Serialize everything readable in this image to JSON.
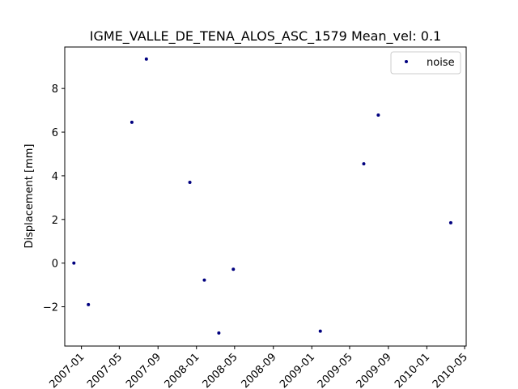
{
  "chart_data": {
    "type": "scatter",
    "title": "IGME_VALLE_DE_TENA_ALOS_ASC_1579    Mean_vel: 0.1",
    "xlabel": "",
    "ylabel": "Displacement [mm]",
    "x_ticks": [
      "2007-01",
      "2007-05",
      "2007-09",
      "2008-01",
      "2008-05",
      "2008-09",
      "2009-01",
      "2009-05",
      "2009-09",
      "2010-01",
      "2010-05"
    ],
    "y_ticks": [
      -2,
      0,
      2,
      4,
      6,
      8
    ],
    "ylim": [
      -3.8,
      9.9
    ],
    "xlim": [
      "2006-11-09",
      "2010-05-06"
    ],
    "grid": false,
    "legend_position": "top-right",
    "series": [
      {
        "name": "noise",
        "color": "#00007f",
        "marker": "point",
        "points": [
          {
            "x": "2006-12-08",
            "y": 0.0
          },
          {
            "x": "2007-01-23",
            "y": -1.9
          },
          {
            "x": "2007-06-10",
            "y": 6.45
          },
          {
            "x": "2007-07-26",
            "y": 9.35
          },
          {
            "x": "2007-12-11",
            "y": 3.7
          },
          {
            "x": "2008-01-26",
            "y": -0.78
          },
          {
            "x": "2008-03-12",
            "y": -3.2
          },
          {
            "x": "2008-04-27",
            "y": -0.28
          },
          {
            "x": "2009-01-28",
            "y": -3.12
          },
          {
            "x": "2009-06-15",
            "y": 4.55
          },
          {
            "x": "2009-07-31",
            "y": 6.78
          },
          {
            "x": "2010-03-18",
            "y": 1.85
          }
        ]
      }
    ]
  }
}
